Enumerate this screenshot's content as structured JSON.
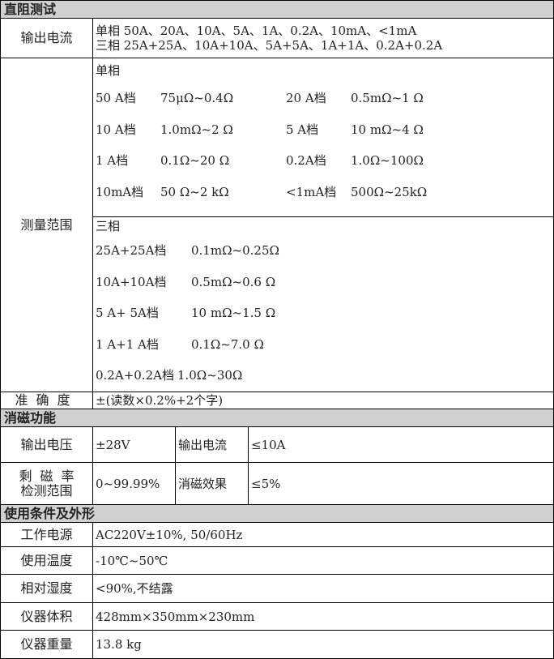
{
  "sections": {
    "dc": "直阻测试",
    "demag": "消磁功能",
    "cond": "使用条件及外形"
  },
  "output_current": {
    "label": "输出电流",
    "single": "单相 50A、20A、10A、5A、1A、0.2A、10mA、<1mA",
    "three": "三相 25A+25A、10A+10A、5A+5A、1A+1A、0.2A+0.2A"
  },
  "range": {
    "label": "测量范围",
    "single_title": "单相",
    "single": [
      [
        "50 A档",
        "75μΩ~0.4Ω",
        "20 A档",
        "0.5mΩ~1 Ω"
      ],
      [
        "10 A档",
        "1.0mΩ~2 Ω",
        "5  A档",
        "10 mΩ~4 Ω"
      ],
      [
        "1  A档",
        "0.1Ω~20 Ω",
        "0.2A档",
        "1.0Ω~100Ω"
      ],
      [
        "10mA档",
        "50 Ω~2 kΩ",
        "<1mA档",
        "500Ω~25kΩ"
      ]
    ],
    "three_title": "三相",
    "three": [
      [
        "25A+25A档",
        "0.1mΩ~0.25Ω"
      ],
      [
        "10A+10A档",
        "0.5mΩ~0.6 Ω"
      ],
      [
        "5 A+ 5A档",
        "10 mΩ~1.5 Ω"
      ],
      [
        "1 A+1 A档",
        "0.1Ω~7.0 Ω"
      ],
      [
        "0.2A+0.2A档",
        "1.0Ω~30Ω"
      ]
    ]
  },
  "accuracy": {
    "label": "准确度",
    "value": "±(读数×0.2%+2个字)"
  },
  "demag": {
    "voltage_label": "输出电压",
    "voltage": "±28V",
    "current_label": "输出电流",
    "current": "≤10A",
    "remanence_label1": "剩磁率",
    "remanence_label2": "检测范围",
    "remanence": "0~99.99%",
    "effect_label": "消磁效果",
    "effect": "≤5%"
  },
  "cond": [
    {
      "label": "工作电源",
      "value": "AC220V±10%, 50/60Hz"
    },
    {
      "label": "使用温度",
      "value": "-10℃~50℃"
    },
    {
      "label": "相对湿度",
      "value": "<90%,不结露"
    },
    {
      "label": "仪器体积",
      "value": "428mm×350mm×230mm"
    },
    {
      "label": "仪器重量",
      "value": "13.8 kg"
    }
  ]
}
